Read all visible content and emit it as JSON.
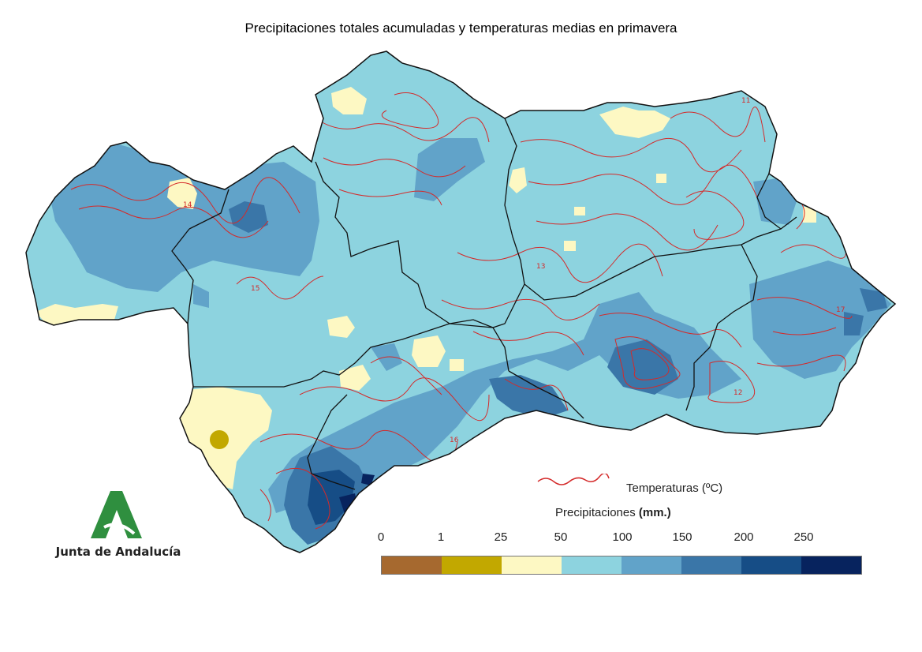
{
  "title": "Precipitaciones totales acumuladas y temperaturas medias en primavera",
  "logo": {
    "text": "Junta de Andalucía",
    "icon": "junta-de-andalucia-logo"
  },
  "legend": {
    "temperature_label": "Temperaturas (ºC)",
    "temperature_color": "#d42a2a",
    "precipitation_title": "Precipitaciones",
    "precipitation_unit": "(mm.)",
    "ticks": [
      "0",
      "1",
      "25",
      "50",
      "100",
      "150",
      "200",
      "250"
    ],
    "colors": [
      "#a6692f",
      "#c2a800",
      "#fdf8c3",
      "#8dd3df",
      "#61a3c9",
      "#3a76a8",
      "#164d86",
      "#07235e"
    ]
  },
  "map": {
    "region": "Andalucía",
    "isotherm_labels": [
      "14",
      "15",
      "16",
      "12",
      "13",
      "17",
      "11"
    ]
  }
}
